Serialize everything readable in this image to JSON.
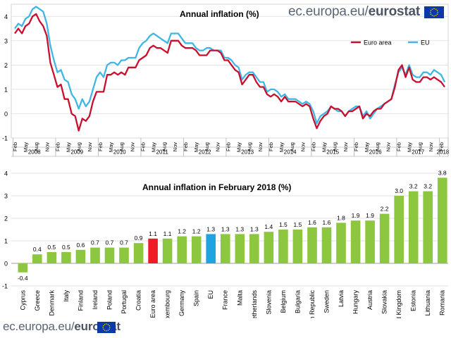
{
  "site": {
    "prefix": "ec.europa.eu/",
    "brand": "eurostat"
  },
  "colors": {
    "euro_area": "#c8102e",
    "eu": "#41b6e6",
    "bar": "#8dc63f",
    "bar_euro_area": "#ee1c25",
    "bar_eu": "#1ea5e0",
    "flag_blue": "#0b3aa6",
    "flag_stars": "#ffd200"
  },
  "chart_data": [
    {
      "type": "line",
      "title": "Annual inflation (%)",
      "ylim": [
        -1,
        4.5
      ],
      "yticks": [
        -1,
        0,
        1,
        2,
        3,
        4
      ],
      "grid": true,
      "legend_position": "top-right",
      "month_ticks": [
        "Feb",
        "May",
        "Aug",
        "Nov",
        "Feb",
        "May",
        "Aug",
        "Nov",
        "Feb",
        "May",
        "Aug",
        "Nov",
        "Feb",
        "May",
        "Aug",
        "Nov",
        "Feb",
        "May",
        "Aug",
        "Nov",
        "Feb",
        "May",
        "Aug",
        "Nov",
        "Feb",
        "May",
        "Aug",
        "Nov",
        "Feb",
        "May",
        "Aug",
        "Nov",
        "Feb",
        "May",
        "Aug",
        "Nov",
        "Feb",
        "May",
        "Aug",
        "Nov",
        "Feb"
      ],
      "years": [
        "2008",
        "2009",
        "2010",
        "2011",
        "2012",
        "2013",
        "2014",
        "2015",
        "2016",
        "2017",
        "2018"
      ],
      "series": [
        {
          "name": "Euro area",
          "values": [
            3.3,
            3.5,
            3.3,
            3.6,
            3.7,
            4.0,
            4.1,
            3.8,
            3.6,
            3.2,
            2.1,
            1.6,
            1.1,
            1.2,
            0.6,
            0.6,
            0.0,
            -0.1,
            -0.7,
            -0.2,
            -0.3,
            -0.1,
            0.5,
            0.9,
            0.9,
            0.9,
            1.6,
            1.6,
            1.7,
            1.6,
            1.7,
            1.6,
            1.9,
            1.9,
            1.9,
            2.2,
            2.3,
            2.4,
            2.7,
            2.8,
            2.7,
            2.7,
            2.6,
            2.5,
            3.0,
            3.0,
            3.0,
            2.8,
            2.7,
            2.7,
            2.7,
            2.6,
            2.4,
            2.4,
            2.4,
            2.6,
            2.6,
            2.6,
            2.5,
            2.2,
            2.2,
            2.0,
            1.8,
            1.7,
            1.2,
            1.4,
            1.6,
            1.6,
            1.3,
            1.1,
            1.1,
            0.8,
            0.7,
            0.8,
            0.7,
            0.5,
            0.7,
            0.5,
            0.5,
            0.5,
            0.4,
            0.3,
            0.4,
            0.3,
            -0.2,
            -0.6,
            -0.3,
            -0.1,
            0.0,
            0.3,
            0.2,
            0.2,
            0.1,
            -0.1,
            0.1,
            0.1,
            0.2,
            0.3,
            -0.2,
            0.0,
            -0.1,
            0.1,
            0.2,
            0.2,
            0.4,
            0.5,
            0.6,
            1.1,
            1.8,
            2.0,
            1.5,
            1.9,
            1.4,
            1.3,
            1.3,
            1.5,
            1.5,
            1.4,
            1.5,
            1.4,
            1.3,
            1.1
          ]
        },
        {
          "name": "EU",
          "values": [
            3.5,
            3.7,
            3.6,
            3.9,
            4.0,
            4.3,
            4.4,
            4.3,
            4.2,
            3.7,
            2.8,
            2.2,
            1.7,
            1.8,
            1.4,
            1.3,
            0.8,
            0.6,
            0.2,
            0.6,
            0.3,
            0.5,
            1.0,
            1.5,
            1.7,
            1.5,
            2.0,
            2.1,
            2.1,
            2.0,
            2.2,
            2.2,
            2.3,
            2.3,
            2.3,
            2.7,
            2.9,
            3.0,
            3.2,
            3.3,
            3.2,
            3.1,
            3.0,
            2.9,
            3.3,
            3.3,
            3.3,
            3.1,
            2.9,
            2.9,
            2.9,
            2.7,
            2.6,
            2.6,
            2.7,
            2.7,
            2.6,
            2.6,
            2.6,
            2.3,
            2.3,
            2.2,
            2.0,
            1.9,
            1.4,
            1.6,
            1.7,
            1.7,
            1.5,
            1.3,
            1.3,
            0.9,
            1.0,
            1.0,
            0.9,
            0.7,
            0.8,
            0.6,
            0.6,
            0.6,
            0.5,
            0.4,
            0.5,
            0.4,
            0.1,
            -0.4,
            -0.1,
            0.0,
            0.1,
            0.3,
            0.2,
            0.1,
            0.1,
            -0.1,
            0.1,
            0.2,
            0.3,
            0.3,
            -0.1,
            0.1,
            -0.2,
            0.0,
            0.2,
            0.3,
            0.4,
            0.5,
            0.6,
            1.2,
            1.7,
            1.9,
            1.6,
            2.0,
            1.6,
            1.5,
            1.5,
            1.7,
            1.7,
            1.6,
            1.8,
            1.7,
            1.6,
            1.3
          ]
        }
      ]
    },
    {
      "type": "bar",
      "title": "Annual inflation in February 2018 (%)",
      "ylim": [
        -1,
        4
      ],
      "yticks": [
        -1,
        0,
        1,
        2,
        3,
        4
      ],
      "categories": [
        "Cyprus",
        "Greece",
        "Denmark",
        "Italy",
        "Finland",
        "Ireland",
        "Poland",
        "Portugal",
        "Croatia",
        "Euro area",
        "Luxembourg",
        "Germany",
        "Spain",
        "EU",
        "France",
        "Malta",
        "Netherlands",
        "Slovenia",
        "Belgium",
        "Bulgaria",
        "Czech Republic",
        "Sweden",
        "Latvia",
        "Hungary",
        "Austria",
        "Slovakia",
        "United Kingdom",
        "Estonia",
        "Lithuania",
        "Romania"
      ],
      "values": [
        -0.4,
        0.4,
        0.5,
        0.5,
        0.6,
        0.7,
        0.7,
        0.7,
        0.9,
        1.1,
        1.1,
        1.2,
        1.2,
        1.3,
        1.3,
        1.3,
        1.3,
        1.4,
        1.5,
        1.5,
        1.6,
        1.6,
        1.8,
        1.9,
        1.9,
        2.2,
        3.0,
        3.2,
        3.2,
        3.8
      ],
      "value_labels": [
        "-0.4",
        "0.4",
        "0.5",
        "0.5",
        "0.6",
        "0.7",
        "0.7",
        "0.7",
        "0.9",
        "1.1",
        "1.1",
        "1.2",
        "1.2",
        "1.3",
        "1.3",
        "1.3",
        "1.3",
        "1.4",
        "1.5",
        "1.5",
        "1.6",
        "1.6",
        "1.8",
        "1.9",
        "1.9",
        "2.2",
        "3.0",
        "3.2",
        "3.2",
        "3.8"
      ]
    }
  ]
}
